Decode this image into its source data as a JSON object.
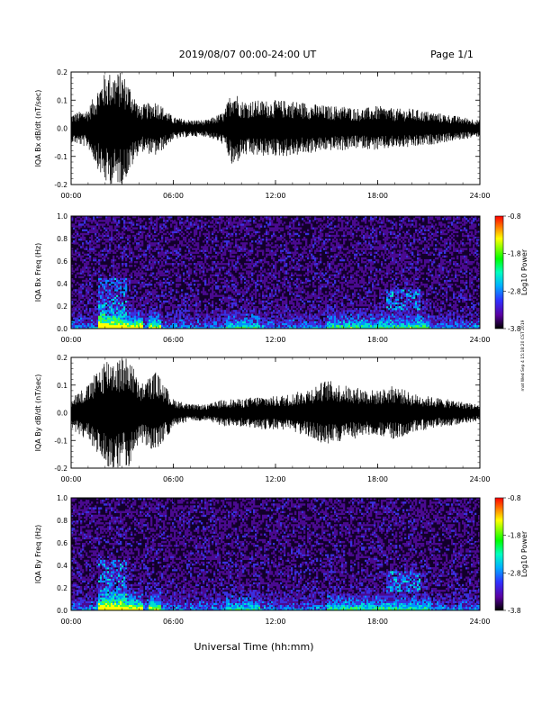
{
  "header": {
    "title": "2019/08/07  00:00-24:00 UT",
    "page": "Page 1/1"
  },
  "footer": {
    "xlabel": "Universal Time (hh:mm)",
    "side_note": "mat Wed Sep 4 15:18:20 CST 2019"
  },
  "colors": {
    "trace": "#000000",
    "cb_red": "#ff0000",
    "cb_yellow": "#ffff00",
    "cb_green": "#00ff00",
    "cb_cyan": "#00ffff",
    "cb_blue": "#0050ff",
    "cb_purple": "#7a00ff",
    "cb_black": "#000000"
  },
  "chart_data": [
    {
      "type": "line",
      "ylabel": "IQA Bx dB/dt (nT/sec)",
      "xlim": [
        0,
        24
      ],
      "ylim": [
        -0.2,
        0.2
      ],
      "x_tick_labels": [
        "00:00",
        "06:00",
        "12:00",
        "18:00",
        "24:00"
      ],
      "y_tick_labels": [
        "-0.2",
        "-0.1",
        "0.0",
        "0.1",
        "0.2"
      ],
      "series": [
        {
          "x_hours": [
            0,
            1,
            2,
            2.5,
            3,
            3.5,
            4,
            5,
            6,
            7,
            8,
            9,
            9.5,
            10,
            11,
            12,
            13,
            14,
            15,
            16,
            17,
            18,
            19,
            20,
            21,
            22,
            23,
            24
          ],
          "amplitude": [
            0.05,
            0.07,
            0.2,
            0.2,
            0.2,
            0.15,
            0.08,
            0.1,
            0.04,
            0.03,
            0.03,
            0.06,
            0.15,
            0.1,
            0.1,
            0.1,
            0.1,
            0.09,
            0.08,
            0.08,
            0.07,
            0.08,
            0.07,
            0.07,
            0.06,
            0.05,
            0.04,
            0.03
          ]
        }
      ]
    },
    {
      "type": "heatmap",
      "ylabel": "IQA Bx Freq (Hz)",
      "xlim": [
        0,
        24
      ],
      "ylim": [
        0.0,
        1.0
      ],
      "x_tick_labels": [
        "00:00",
        "06:00",
        "12:00",
        "18:00",
        "24:00"
      ],
      "y_tick_labels": [
        "0.0",
        "0.2",
        "0.4",
        "0.6",
        "0.8",
        "1.0"
      ],
      "colorbar": {
        "label": "Log10 Power",
        "range": [
          -3.8,
          -0.8
        ],
        "tick_labels": [
          "-0.8",
          "-1.8",
          "-2.8",
          "-3.8"
        ]
      }
    },
    {
      "type": "line",
      "ylabel": "IQA By dB/dt (nT/sec)",
      "xlim": [
        0,
        24
      ],
      "ylim": [
        -0.2,
        0.2
      ],
      "x_tick_labels": [
        "00:00",
        "06:00",
        "12:00",
        "18:00",
        "24:00"
      ],
      "y_tick_labels": [
        "-0.2",
        "-0.1",
        "0.0",
        "0.1",
        "0.2"
      ],
      "series": [
        {
          "x_hours": [
            0,
            1,
            2,
            2.5,
            3,
            3.5,
            4,
            5,
            6,
            7,
            8,
            9,
            10,
            11,
            12,
            13,
            14,
            15,
            16,
            17,
            18,
            19,
            20,
            21,
            22,
            23,
            24
          ],
          "amplitude": [
            0.06,
            0.1,
            0.2,
            0.2,
            0.2,
            0.2,
            0.1,
            0.15,
            0.05,
            0.03,
            0.03,
            0.05,
            0.05,
            0.06,
            0.06,
            0.07,
            0.09,
            0.12,
            0.1,
            0.09,
            0.08,
            0.1,
            0.07,
            0.06,
            0.05,
            0.04,
            0.03
          ]
        }
      ]
    },
    {
      "type": "heatmap",
      "ylabel": "IQA By Freq (Hz)",
      "xlim": [
        0,
        24
      ],
      "ylim": [
        0.0,
        1.0
      ],
      "x_tick_labels": [
        "00:00",
        "06:00",
        "12:00",
        "18:00",
        "24:00"
      ],
      "y_tick_labels": [
        "0.0",
        "0.2",
        "0.4",
        "0.6",
        "0.8",
        "1.0"
      ],
      "colorbar": {
        "label": "Log10 Power",
        "range": [
          -3.8,
          -0.8
        ],
        "tick_labels": [
          "-0.8",
          "-1.8",
          "-2.8",
          "-3.8"
        ]
      }
    }
  ]
}
